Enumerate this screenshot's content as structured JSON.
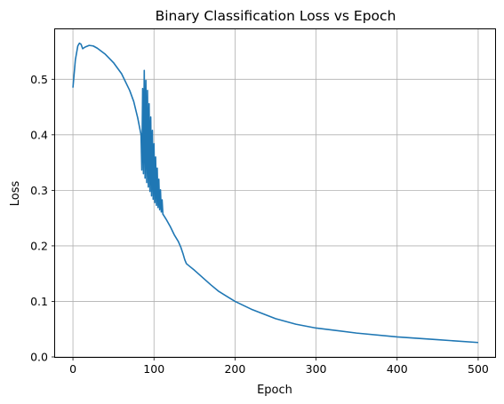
{
  "chart_data": {
    "type": "line",
    "title": "Binary Classification Loss vs Epoch",
    "xlabel": "Epoch",
    "ylabel": "Loss",
    "xlim": [
      -22,
      522
    ],
    "ylim": [
      0,
      0.59
    ],
    "xticks": [
      0,
      100,
      200,
      300,
      400,
      500
    ],
    "yticks": [
      0.0,
      0.1,
      0.2,
      0.3,
      0.4,
      0.5
    ],
    "ytick_labels": [
      "0.0",
      "0.1",
      "0.2",
      "0.3",
      "0.4",
      "0.5"
    ],
    "grid": true,
    "series": [
      {
        "color": "#1f77b4",
        "oscillation": {
          "x_start": 84,
          "x_end": 112,
          "upper": [
            [
              84,
              0.4
            ],
            [
              87,
              0.525
            ],
            [
              92,
              0.48
            ],
            [
              97,
              0.42
            ],
            [
              102,
              0.36
            ],
            [
              107,
              0.31
            ],
            [
              112,
              0.265
            ]
          ],
          "lower": [
            [
              84,
              0.34
            ],
            [
              87,
              0.33
            ],
            [
              92,
              0.31
            ],
            [
              97,
              0.29
            ],
            [
              102,
              0.275
            ],
            [
              107,
              0.265
            ],
            [
              112,
              0.255
            ]
          ]
        },
        "x": [
          0,
          3,
          6,
          8,
          10,
          12,
          15,
          20,
          25,
          30,
          40,
          50,
          60,
          70,
          75,
          80,
          84,
          112,
          115,
          120,
          125,
          130,
          133,
          136,
          138,
          140,
          145,
          150,
          160,
          170,
          180,
          200,
          220,
          250,
          275,
          300,
          350,
          400,
          450,
          500
        ],
        "y": [
          0.485,
          0.535,
          0.56,
          0.565,
          0.563,
          0.555,
          0.558,
          0.561,
          0.56,
          0.556,
          0.545,
          0.53,
          0.51,
          0.48,
          0.46,
          0.43,
          0.4,
          0.255,
          0.248,
          0.235,
          0.22,
          0.208,
          0.198,
          0.185,
          0.175,
          0.168,
          0.162,
          0.156,
          0.143,
          0.13,
          0.118,
          0.1,
          0.086,
          0.069,
          0.059,
          0.052,
          0.043,
          0.036,
          0.031,
          0.026
        ]
      }
    ]
  }
}
